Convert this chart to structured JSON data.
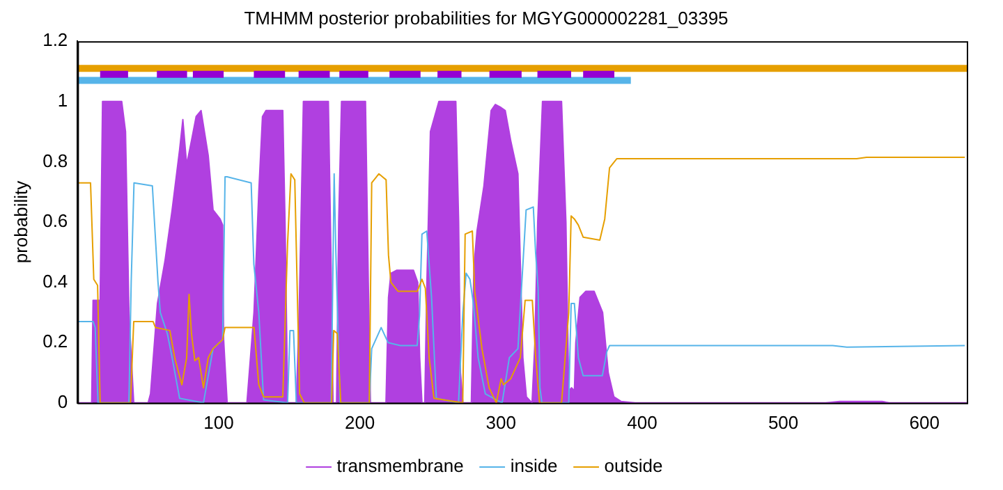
{
  "chart_data": {
    "type": "line",
    "title": "TMHMM posterior probabilities for MGYG000002281_03395",
    "ylabel": "probability",
    "xlim": [
      0,
      630
    ],
    "xticks": [
      100,
      200,
      300,
      400,
      500,
      600
    ],
    "ylim": [
      0,
      1.2
    ],
    "yticks": [
      0,
      0.2,
      0.4,
      0.6,
      0.8,
      1,
      1.2
    ],
    "grid": false,
    "legend": "bottom",
    "marker": "none",
    "line_style": "solid",
    "series": [
      {
        "name": "transmembrane",
        "type": "area",
        "color": "#b040e0",
        "x": [
          0,
          10,
          11,
          16,
          17.7,
          31.3,
          34,
          36.4,
          39.8,
          50,
          51.7,
          56.6,
          61.9,
          67,
          72.3,
          74.6,
          77.3,
          80.7,
          84,
          87.5,
          92.6,
          96,
          101,
          102.8,
          103.5,
          106,
          120,
          125,
          128.4,
          131,
          133.5,
          145.4,
          147,
          148.9,
          155,
          157,
          160,
          177.7,
          179.5,
          181,
          183.5,
          185,
          187,
          204,
          206,
          207.5,
          218.5,
          220.3,
          222,
          226,
          238,
          241,
          242.4,
          244,
          246,
          247.5,
          250,
          256,
          268,
          270,
          271.3,
          273,
          279,
          280.8,
          283,
          287.9,
          293,
          296,
          300,
          303,
          306.9,
          312,
          315.5,
          318,
          322,
          324,
          326,
          329.4,
          342.9,
          346,
          348,
          350,
          352,
          353,
          356,
          360,
          366,
          372,
          376,
          380,
          385,
          395,
          530,
          540,
          570,
          575,
          630
        ],
        "values": [
          0,
          0,
          0.34,
          0.34,
          1,
          1,
          0.9,
          0.3,
          0,
          0,
          0.03,
          0.33,
          0.47,
          0.64,
          0.84,
          0.94,
          0.79,
          0.87,
          0.95,
          0.97,
          0.82,
          0.64,
          0.61,
          0.59,
          0.21,
          0,
          0,
          0.3,
          0.7,
          0.95,
          0.97,
          0.97,
          0.6,
          0,
          0,
          0.3,
          1,
          1,
          0.5,
          0,
          0,
          0.6,
          1,
          1,
          0.4,
          0,
          0,
          0.35,
          0.43,
          0.44,
          0.44,
          0.4,
          0.15,
          0,
          0,
          0.4,
          0.9,
          1,
          1,
          0.6,
          0.1,
          0,
          0,
          0.45,
          0.57,
          0.72,
          0.97,
          0.99,
          0.98,
          0.97,
          0.87,
          0.76,
          0.15,
          0.02,
          0,
          0.2,
          0.6,
          1,
          1,
          0.6,
          0.04,
          0.05,
          0.04,
          0.2,
          0.35,
          0.37,
          0.37,
          0.3,
          0.1,
          0.02,
          0.005,
          0,
          0,
          0.005,
          0.005,
          0,
          0
        ]
      },
      {
        "name": "inside",
        "type": "line",
        "color": "#56b4e9",
        "x": [
          0,
          11,
          12.5,
          14.5,
          36.4,
          38,
          40,
          53,
          54.5,
          57,
          58.6,
          63.6,
          67,
          72.3,
          89.2,
          96,
          102.8,
          104.5,
          106,
          123,
          124.9,
          128.4,
          131.8,
          148.8,
          150.5,
          153,
          155,
          179.7,
          181.8,
          183,
          186,
          206.7,
          208.4,
          215.1,
          220,
          228.7,
          240.6,
          242.3,
          244,
          247.4,
          250.8,
          254.2,
          269.9,
          273,
          275.3,
          278,
          280.4,
          283.8,
          288.9,
          300.8,
          305.9,
          312,
          317.8,
          322.9,
          324.5,
          326.3,
          327.6,
          329,
          348,
          349.7,
          352,
          354.8,
          358.2,
          371.8,
          375,
          376.9,
          388.8,
          535,
          545,
          628.6
        ],
        "values": [
          0.27,
          0.27,
          0.25,
          0,
          0,
          0.4,
          0.73,
          0.72,
          0.6,
          0.4,
          0.3,
          0.23,
          0.15,
          0.015,
          0,
          0.18,
          0.21,
          0.75,
          0.75,
          0.73,
          0.46,
          0.3,
          0.01,
          0,
          0.24,
          0.24,
          0,
          0,
          0.76,
          0.5,
          0,
          0,
          0.18,
          0.25,
          0.2,
          0.19,
          0.19,
          0.29,
          0.56,
          0.57,
          0.35,
          0.015,
          0,
          0.3,
          0.43,
          0.41,
          0.33,
          0.15,
          0.03,
          0,
          0.15,
          0.18,
          0.64,
          0.65,
          0.5,
          0.38,
          0.05,
          0,
          0,
          0.33,
          0.33,
          0.15,
          0.09,
          0.09,
          0.17,
          0.19,
          0.19,
          0.19,
          0.185,
          0.19
        ]
      },
      {
        "name": "outside",
        "type": "line",
        "color": "#e69f00",
        "x": [
          0,
          9.2,
          11.5,
          14.2,
          16,
          37.5,
          39.8,
          53.5,
          55.2,
          65.4,
          68.8,
          73.9,
          77.3,
          79,
          80.7,
          83.1,
          85.8,
          89.2,
          92.6,
          96,
          102.8,
          104.5,
          125,
          128.4,
          131.8,
          145.4,
          148.8,
          151.2,
          153.9,
          157.3,
          160.6,
          180,
          181.5,
          184,
          186.5,
          206.7,
          208.4,
          213.5,
          218.6,
          220.3,
          222,
          227.1,
          240.7,
          244,
          246.4,
          249.1,
          252.5,
          272.9,
          274.6,
          279.7,
          281.4,
          286.5,
          291.6,
          296.7,
          300.1,
          301.8,
          306.9,
          313.7,
          317.1,
          322.2,
          324.6,
          327.3,
          342.9,
          348,
          349.7,
          352,
          354.8,
          358.2,
          370,
          373.5,
          376.9,
          382,
          552,
          559,
          628.6
        ],
        "values": [
          0.73,
          0.73,
          0.41,
          0.39,
          0,
          0,
          0.27,
          0.27,
          0.25,
          0.24,
          0.15,
          0.06,
          0.15,
          0.36,
          0.23,
          0.14,
          0.15,
          0.05,
          0.15,
          0.18,
          0.21,
          0.25,
          0.25,
          0.06,
          0.02,
          0.02,
          0.53,
          0.76,
          0.74,
          0.03,
          0,
          0,
          0.24,
          0.23,
          0,
          0,
          0.73,
          0.76,
          0.74,
          0.49,
          0.4,
          0.37,
          0.37,
          0.41,
          0.38,
          0.15,
          0.015,
          0,
          0.56,
          0.57,
          0.37,
          0.18,
          0.05,
          0,
          0.08,
          0.06,
          0.08,
          0.15,
          0.34,
          0.34,
          0.15,
          0,
          0,
          0.3,
          0.62,
          0.61,
          0.59,
          0.55,
          0.54,
          0.61,
          0.78,
          0.81,
          0.81,
          0.815,
          0.815
        ]
      },
      {
        "type": "line",
        "color": "#56b4e9",
        "x": [
          0,
          392
        ],
        "values": [
          1.07,
          1.07
        ]
      },
      {
        "type": "line",
        "color": "#e69f00",
        "x": [
          0,
          630
        ],
        "values": [
          1.11,
          1.11
        ]
      },
      {
        "type": "line",
        "color": "#9400d3",
        "x": [
          16,
          35.8,
          46,
          56.2,
          77.6,
          79.6,
          81.7,
          103.5,
          114,
          124.9,
          147,
          152,
          156.6,
          178.7,
          182,
          185.5,
          206,
          213,
          221,
          243,
          249,
          255,
          272,
          282,
          291.8,
          314.6,
          320,
          325.8,
          349.7,
          354,
          358.2,
          380.3
        ],
        "values": [
          1.09,
          1.09,
          null,
          1.09,
          1.09,
          null,
          1.09,
          1.09,
          null,
          1.09,
          1.09,
          null,
          1.09,
          1.09,
          null,
          1.09,
          1.09,
          null,
          1.09,
          1.09,
          null,
          1.09,
          1.09,
          null,
          1.09,
          1.09,
          null,
          1.09,
          1.09,
          null,
          1.09,
          1.09
        ]
      }
    ]
  }
}
